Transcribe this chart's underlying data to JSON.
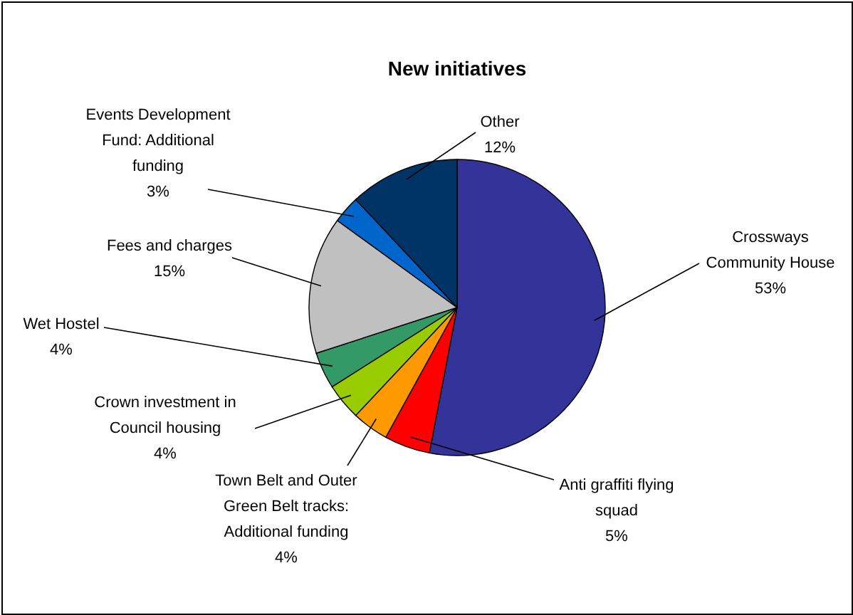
{
  "chart_data": {
    "type": "pie",
    "title": "New initiatives",
    "categories": [
      "Crossways Community House",
      "Anti graffiti flying squad",
      "Town Belt and Outer Green Belt tracks: Additional funding",
      "Crown investment in Council housing",
      "Wet Hostel",
      "Fees and charges",
      "Events Development Fund: Additional funding",
      "Other"
    ],
    "values": [
      53,
      5,
      4,
      4,
      4,
      15,
      3,
      12
    ],
    "colors": [
      "#333399",
      "#ff0000",
      "#ff9900",
      "#99cc00",
      "#339966",
      "#c0c0c0",
      "#0066cc",
      "#003366"
    ],
    "value_labels": [
      "53%",
      "5%",
      "4%",
      "4%",
      "4%",
      "15%",
      "3%",
      "12%"
    ]
  }
}
